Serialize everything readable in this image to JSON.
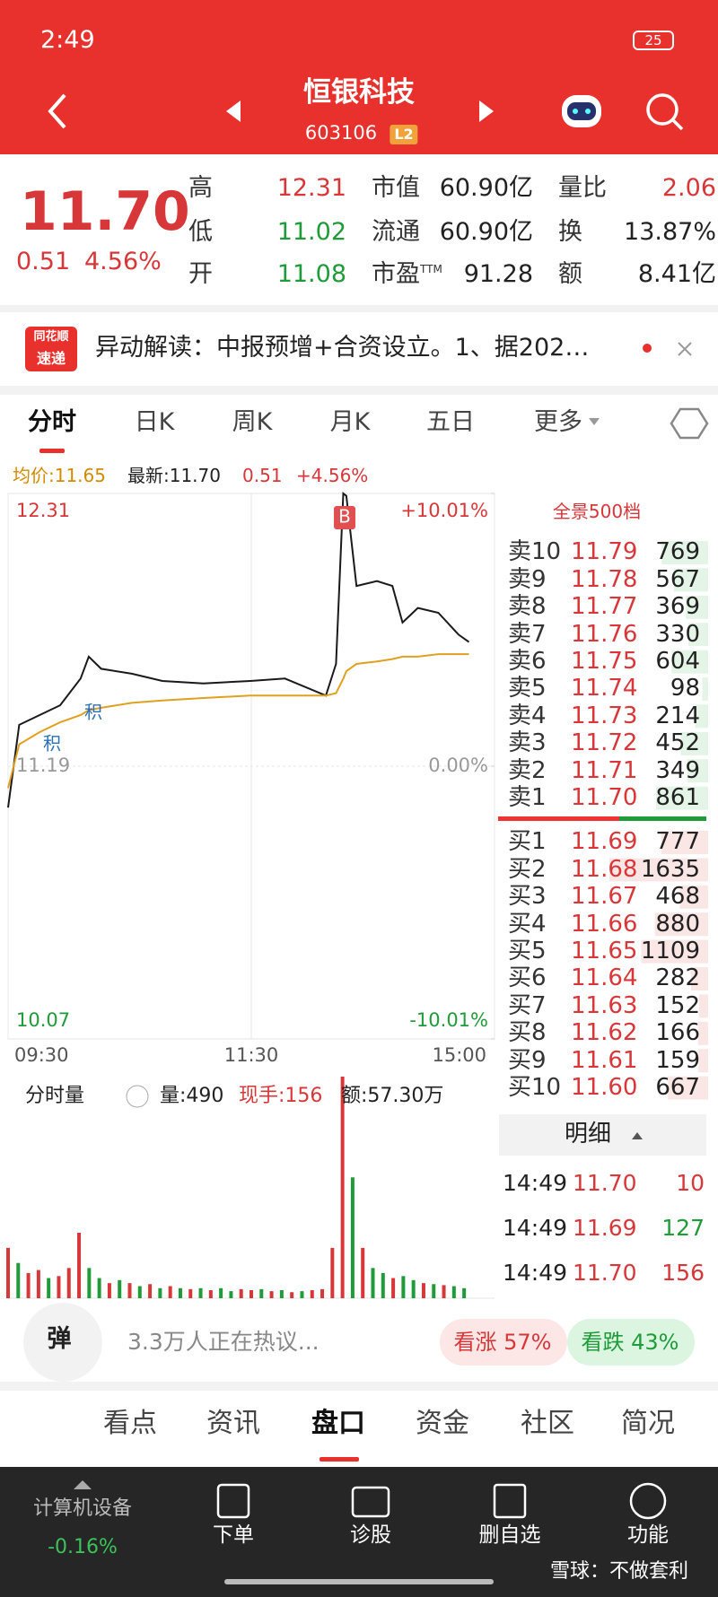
{
  "status_bar": {
    "time": "2:49",
    "battery": "25"
  },
  "header": {
    "title": "恒银科技",
    "code": "603106",
    "badge": "L2"
  },
  "quote": {
    "price": "11.70",
    "change": "0.51",
    "change_pct": "4.56%",
    "stats": [
      {
        "label": "高",
        "value": "12.31"
      },
      {
        "label": "低",
        "value": "11.02"
      },
      {
        "label": "开",
        "value": "11.08"
      },
      {
        "label": "市值",
        "value": "60.90亿"
      },
      {
        "label": "流通",
        "value": "60.90亿"
      },
      {
        "label": "市盈",
        "sup": "TTM",
        "value": "91.28"
      },
      {
        "label": "量比",
        "value": "2.06"
      },
      {
        "label": "换",
        "value": "13.87%"
      },
      {
        "label": "额",
        "value": "8.41亿"
      }
    ]
  },
  "news": {
    "logo_top": "同花顺",
    "logo_bottom": "速递",
    "text": "异动解读：中报预增+合资设立。1、据202…"
  },
  "tabs": [
    "分时",
    "日K",
    "周K",
    "月K",
    "五日",
    "更多"
  ],
  "chart_info": {
    "avg": "均价:11.65",
    "last": "最新:11.70",
    "change": "0.51",
    "pct": "+4.56%"
  },
  "chart_data": [
    {
      "type": "line",
      "x": [
        0,
        5.5,
        15.6,
        25.7,
        35.8,
        39.8,
        45.9,
        61,
        76.1,
        96.3,
        119.5,
        136.6,
        156.8,
        161.8,
        165.4,
        166.9,
        171.9,
        182,
        189.6,
        194.6,
        202.2,
        212.3,
        222.3,
        227.4
      ],
      "series": [
        {
          "color": "#1a1a1a",
          "values": [
            11.02,
            11.36,
            11.4,
            11.44,
            11.55,
            11.64,
            11.59,
            11.57,
            11.54,
            11.53,
            11.54,
            11.55,
            11.48,
            11.61,
            12.31,
            12.3,
            11.93,
            11.95,
            11.93,
            11.78,
            11.84,
            11.82,
            11.73,
            11.7
          ]
        },
        {
          "color": "#e0a020",
          "values": [
            11.1,
            11.28,
            11.33,
            11.37,
            11.4,
            11.42,
            11.43,
            11.45,
            11.46,
            11.47,
            11.48,
            11.48,
            11.48,
            11.49,
            11.55,
            11.58,
            11.61,
            11.62,
            11.63,
            11.64,
            11.64,
            11.65,
            11.65,
            11.65
          ]
        }
      ],
      "xlim": [
        0,
        240
      ],
      "xticks": [
        {
          "value": 0,
          "label": "09:30"
        },
        {
          "value": 120,
          "label": "11:30"
        },
        {
          "value": 240,
          "label": "15:00"
        }
      ],
      "ylim": [
        10.07,
        12.31
      ],
      "yticks": [
        12.31,
        11.19,
        10.07
      ],
      "y2lim": [
        -10.01,
        10.01
      ],
      "y2ticks": [
        {
          "value": 10.01,
          "label": "+10.01%"
        },
        {
          "value": 0,
          "label": "0.00%"
        },
        {
          "value": -10.01,
          "label": "-10.01%"
        }
      ],
      "annotations": [
        "B",
        "积",
        "积"
      ],
      "grid": true
    },
    {
      "type": "bar",
      "label": "分时量",
      "amount": "量:490",
      "hand": "现手:156",
      "money": "额:57.30万",
      "x": [
        0,
        5,
        10,
        15,
        20,
        25,
        30,
        35,
        40,
        45,
        50,
        55,
        60,
        65,
        70,
        75,
        80,
        85,
        90,
        95,
        100,
        105,
        110,
        115,
        120,
        125,
        130,
        135,
        140,
        145,
        150,
        155,
        160,
        165,
        170,
        175,
        180,
        185,
        190,
        195,
        200,
        205,
        210,
        215,
        220,
        225
      ],
      "values": [
        5000,
        3500,
        2500,
        2800,
        2000,
        2200,
        3000,
        6500,
        3000,
        2000,
        1500,
        1800,
        1500,
        1200,
        1400,
        1000,
        1200,
        1000,
        900,
        1000,
        800,
        1000,
        700,
        900,
        800,
        900,
        700,
        800,
        600,
        700,
        800,
        900,
        5000,
        22000,
        12000,
        5000,
        3000,
        2500,
        2000,
        2200,
        1800,
        1500,
        1400,
        1300,
        1200,
        1000
      ],
      "colors": [
        "#d8373a",
        "#1f9b3a",
        "#d8373a",
        "#d8373a",
        "#1f9b3a",
        "#d8373a",
        "#d8373a",
        "#d8373a",
        "#1f9b3a",
        "#1f9b3a",
        "#d8373a",
        "#1f9b3a",
        "#d8373a",
        "#1f9b3a",
        "#d8373a",
        "#1f9b3a",
        "#d8373a",
        "#1f9b3a",
        "#d8373a",
        "#1f9b3a",
        "#d8373a",
        "#1f9b3a",
        "#1f9b3a",
        "#d8373a",
        "#d8373a",
        "#1f9b3a",
        "#d8373a",
        "#1f9b3a",
        "#d8373a",
        "#1f9b3a",
        "#d8373a",
        "#d8373a",
        "#d8373a",
        "#d8373a",
        "#1f9b3a",
        "#d8373a",
        "#1f9b3a",
        "#1f9b3a",
        "#d8373a",
        "#1f9b3a",
        "#1f9b3a",
        "#d8373a",
        "#1f9b3a",
        "#d8373a",
        "#1f9b3a",
        "#1f9b3a"
      ],
      "xlim": [
        0,
        240
      ],
      "ylim": [
        0,
        22000
      ]
    }
  ],
  "order_book": {
    "title": "全景500档",
    "asks": [
      {
        "label": "卖10",
        "price": "11.79",
        "volume": 769
      },
      {
        "label": "卖9",
        "price": "11.78",
        "volume": 567
      },
      {
        "label": "卖8",
        "price": "11.77",
        "volume": 369
      },
      {
        "label": "卖7",
        "price": "11.76",
        "volume": 330
      },
      {
        "label": "卖6",
        "price": "11.75",
        "volume": 604
      },
      {
        "label": "卖5",
        "price": "11.74",
        "volume": 98
      },
      {
        "label": "卖4",
        "price": "11.73",
        "volume": 214
      },
      {
        "label": "卖3",
        "price": "11.72",
        "volume": 452
      },
      {
        "label": "卖2",
        "price": "11.71",
        "volume": 349
      },
      {
        "label": "卖1",
        "price": "11.70",
        "volume": 861
      }
    ],
    "bids": [
      {
        "label": "买1",
        "price": "11.69",
        "volume": 777
      },
      {
        "label": "买2",
        "price": "11.68",
        "volume": 1635
      },
      {
        "label": "买3",
        "price": "11.67",
        "volume": 468
      },
      {
        "label": "买4",
        "price": "11.66",
        "volume": 880
      },
      {
        "label": "买5",
        "price": "11.65",
        "volume": 1109
      },
      {
        "label": "买6",
        "price": "11.64",
        "volume": 282
      },
      {
        "label": "买7",
        "price": "11.63",
        "volume": 152
      },
      {
        "label": "买8",
        "price": "11.62",
        "volume": 166
      },
      {
        "label": "买9",
        "price": "11.61",
        "volume": 159
      },
      {
        "label": "买10",
        "price": "11.60",
        "volume": 667
      }
    ]
  },
  "trades": {
    "title": "明细",
    "rows": [
      [
        "14:49",
        "11.70",
        "10"
      ],
      [
        "14:49",
        "11.69",
        "127"
      ],
      [
        "14:49",
        "11.70",
        "156"
      ]
    ]
  },
  "discussion": {
    "bullet": "弹",
    "text": "3.3万人正在热议...",
    "up": "看涨 57%",
    "down": "看跌 43%"
  },
  "bottom_tabs": [
    "看点",
    "资讯",
    "盘口",
    "资金",
    "社区",
    "简况"
  ],
  "footer": {
    "sector": "计算机设备",
    "sector_change": "-0.16%",
    "buttons": [
      "下单",
      "诊股",
      "删自选",
      "功能"
    ],
    "watermark": "雪球：不做套利"
  }
}
